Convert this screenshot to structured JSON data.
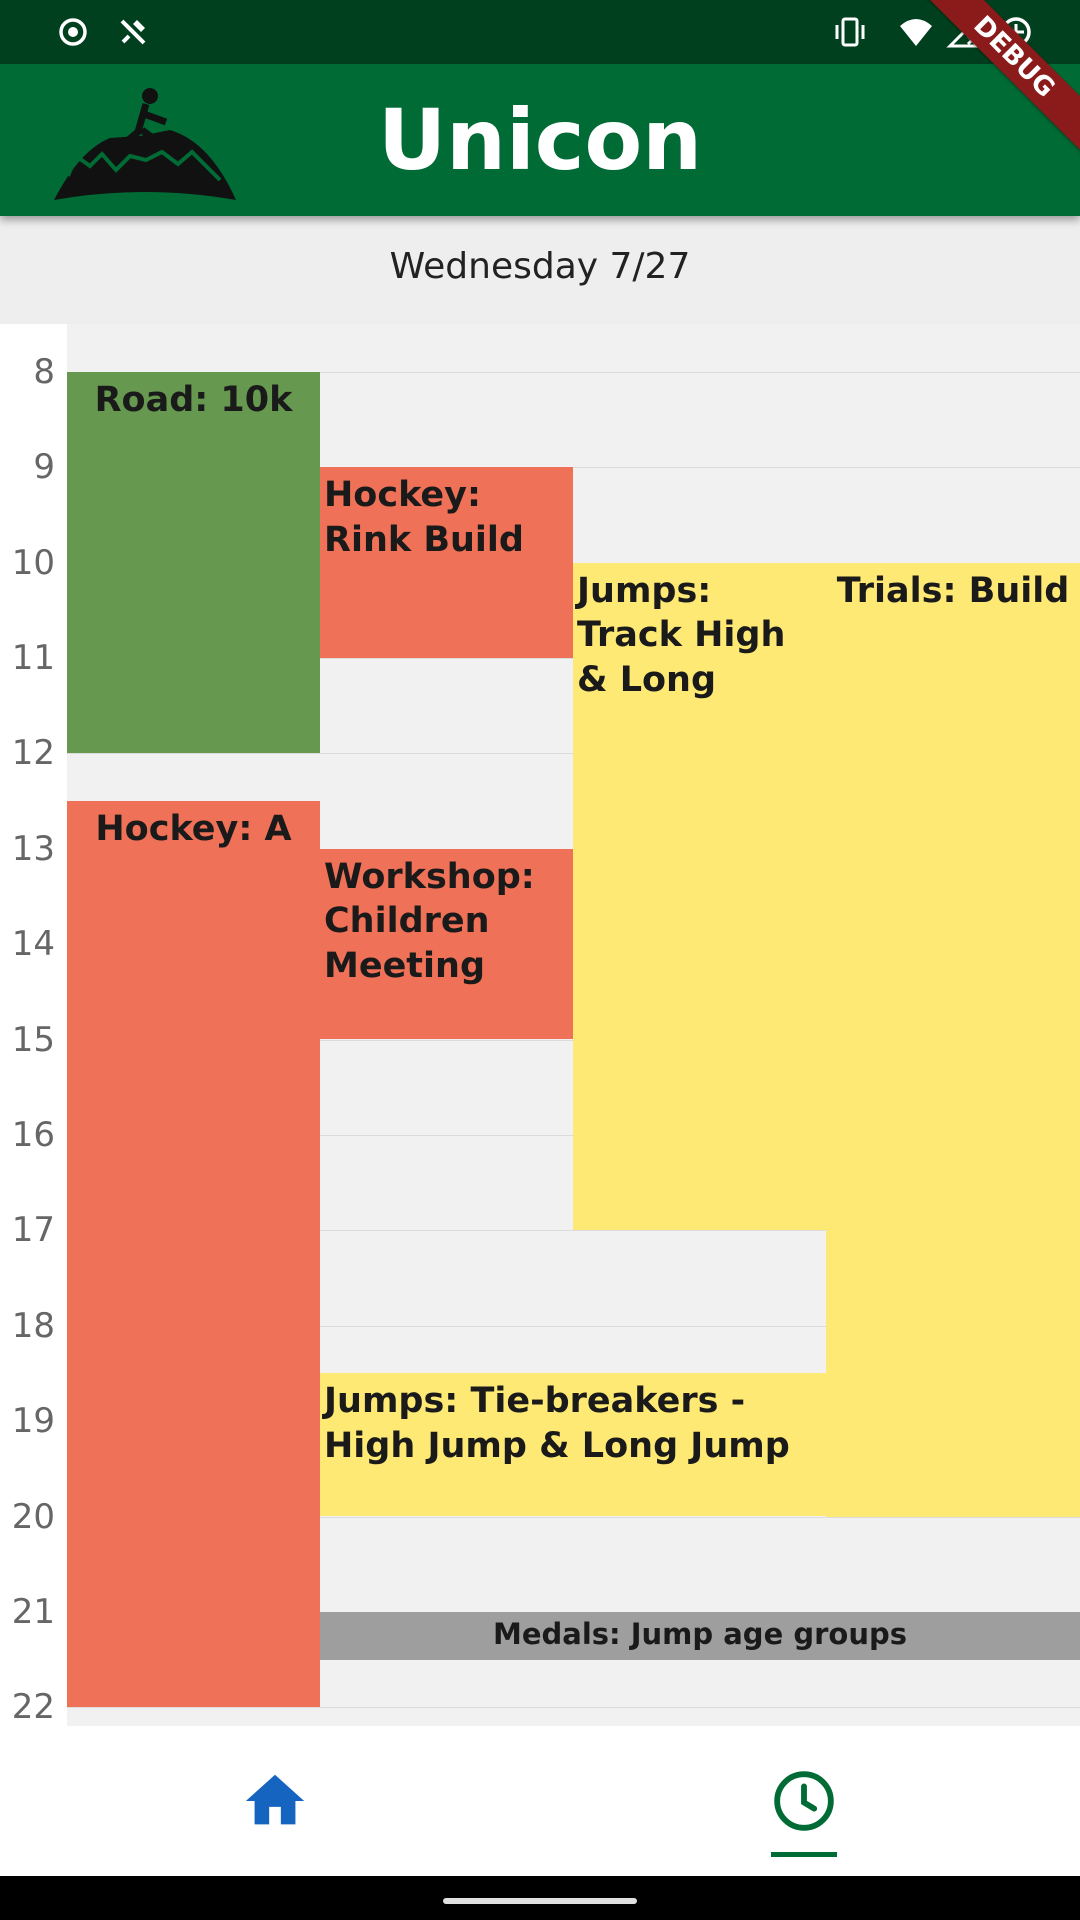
{
  "status_bar": {
    "left_icons": [
      "target-icon",
      "tools-icon"
    ],
    "right_icons": [
      "vibrate-icon",
      "wifi-icon",
      "signal-no-data-icon",
      "battery-saver-icon"
    ]
  },
  "app_bar": {
    "title": "Unicon",
    "logo_alt": "Unicon 20 logo",
    "background": "#006b35",
    "debug_banner": "DEBUG"
  },
  "day_header": {
    "label": "Wednesday 7/27"
  },
  "schedule": {
    "hours": [
      "8",
      "9",
      "10",
      "11",
      "12",
      "13",
      "14",
      "15",
      "16",
      "17",
      "18",
      "19",
      "20",
      "21",
      "22"
    ],
    "events": [
      {
        "title": "Road: 10k",
        "start": "8:00",
        "end": "12:00",
        "color": "#66994f"
      },
      {
        "title": "Hockey: Rink Build",
        "start": "9:00",
        "end": "11:00",
        "color": "#ef7157"
      },
      {
        "title": "Jumps: Track High & Long",
        "start": "10:00",
        "end": "17:00",
        "color": "#fde974"
      },
      {
        "title": "Trials: Build",
        "start": "10:00",
        "end": "20:00",
        "color": "#fde974"
      },
      {
        "title": "Hockey: A",
        "start": "12:30",
        "end": "22:00",
        "color": "#ef7157"
      },
      {
        "title": "Workshop: Children Meeting",
        "start": "13:00",
        "end": "15:00",
        "color": "#ef7157"
      },
      {
        "title": "Jumps: Tie-breakers - High Jump & Long Jump",
        "start": "18:30",
        "end": "20:00",
        "color": "#fde974"
      },
      {
        "title": "Medals: Jump age groups",
        "start": "21:00",
        "end": "21:30",
        "color": "#9e9e9e"
      }
    ]
  },
  "bottom_nav": {
    "items": [
      {
        "icon": "home-icon",
        "selected": false
      },
      {
        "icon": "clock-icon",
        "selected": true
      }
    ],
    "accent": "#006b35",
    "home_color": "#1565c0"
  }
}
